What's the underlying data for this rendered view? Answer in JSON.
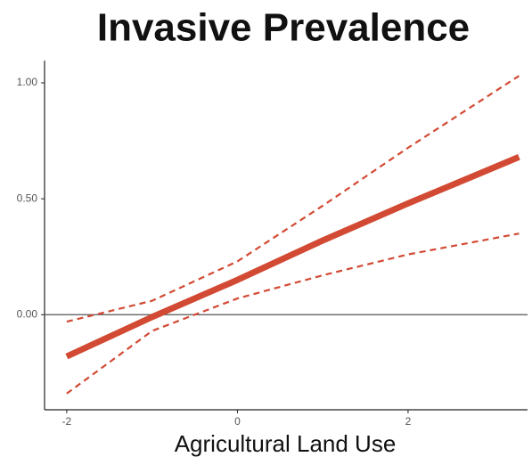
{
  "chart_data": {
    "type": "line",
    "title": "Invasive Prevalence",
    "x_label": "Agricultural Land Use",
    "x": [
      -2,
      -1,
      0,
      1,
      2,
      3.3
    ],
    "series": [
      {
        "color": "#d24a33",
        "dashed": false,
        "values": [
          -0.18,
          -0.01,
          0.15,
          0.32,
          0.48,
          0.68
        ]
      },
      {
        "color": "#d24a33",
        "dashed": true,
        "values": [
          -0.03,
          0.06,
          0.23,
          0.47,
          0.72,
          1.03
        ]
      },
      {
        "color": "#d24a33",
        "dashed": true,
        "values": [
          -0.34,
          -0.07,
          0.07,
          0.17,
          0.26,
          0.35
        ]
      }
    ],
    "xlim": [
      -2.26,
      3.4
    ],
    "ylim": [
      -0.41,
      1.096
    ],
    "xticks": [
      -2,
      0,
      2
    ],
    "yticks": [
      {
        "value": 0,
        "label": "0.00"
      },
      {
        "value": 0.5,
        "label": "0.50"
      },
      {
        "value": 1,
        "label": "1.00"
      }
    ],
    "hline": 0,
    "grid": false
  }
}
